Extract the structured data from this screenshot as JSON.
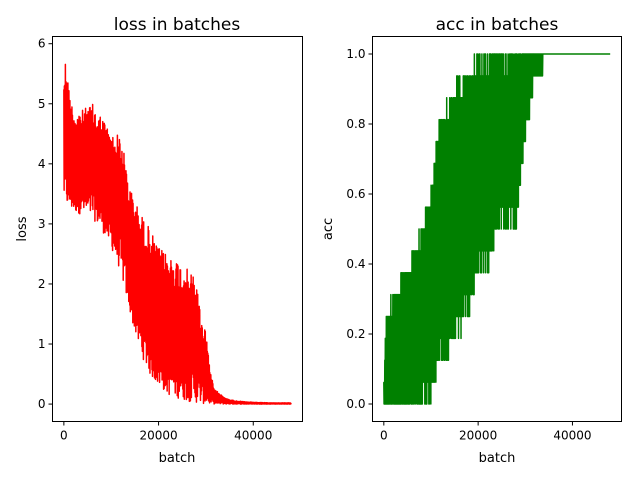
{
  "chart_data": [
    {
      "type": "line",
      "title": "loss in batches",
      "xlabel": "batch",
      "ylabel": "loss",
      "xlim": [
        -2400,
        50400
      ],
      "ylim": [
        -0.29,
        6.12
      ],
      "xticks": [
        0,
        20000,
        40000
      ],
      "xtick_labels": [
        "0",
        "20000",
        "40000"
      ],
      "yticks": [
        0,
        1,
        2,
        3,
        4,
        5,
        6
      ],
      "ytick_labels": [
        "0",
        "1",
        "2",
        "3",
        "4",
        "5",
        "6"
      ],
      "grid": false,
      "series": [
        {
          "color": "#ff0000",
          "style": "noisy",
          "x": [
            0,
            500,
            1000,
            2000,
            4000,
            6000,
            8000,
            10000,
            12000,
            14000,
            16000,
            18000,
            20000,
            22000,
            24000,
            26000,
            28000,
            29000,
            30000,
            31000,
            32000,
            34000,
            36000,
            38000,
            40000,
            44000,
            48000
          ],
          "upper": [
            5.6,
            5.85,
            5.3,
            4.9,
            4.9,
            5.0,
            4.8,
            4.5,
            4.5,
            3.6,
            3.2,
            2.95,
            2.6,
            2.5,
            2.4,
            2.25,
            2.1,
            1.4,
            1.25,
            0.5,
            0.25,
            0.1,
            0.06,
            0.04,
            0.03,
            0.02,
            0.02
          ],
          "lower": [
            3.4,
            3.3,
            3.25,
            3.2,
            3.15,
            3.1,
            2.9,
            2.6,
            2.2,
            1.5,
            0.9,
            0.5,
            0.3,
            0.15,
            0.1,
            0.05,
            0.02,
            0.01,
            0.0,
            0.0,
            0.0,
            0.0,
            0.0,
            0.0,
            0.0,
            0.0,
            0.0
          ]
        }
      ]
    },
    {
      "type": "line",
      "title": "acc in batches",
      "xlabel": "batch",
      "ylabel": "acc",
      "xlim": [
        -2400,
        50400
      ],
      "ylim": [
        -0.05,
        1.05
      ],
      "xticks": [
        0,
        20000,
        40000
      ],
      "xtick_labels": [
        "0",
        "20000",
        "40000"
      ],
      "yticks": [
        0.0,
        0.2,
        0.4,
        0.6,
        0.8,
        1.0
      ],
      "ytick_labels": [
        "0.0",
        "0.2",
        "0.4",
        "0.6",
        "0.8",
        "1.0"
      ],
      "grid": false,
      "series": [
        {
          "color": "#008000",
          "style": "noisy",
          "x": [
            0,
            500,
            2000,
            4000,
            6000,
            8000,
            10000,
            11000,
            12000,
            14000,
            16000,
            18000,
            20000,
            22000,
            24000,
            26000,
            28000,
            30000,
            32000,
            33500,
            34000,
            48000
          ],
          "upper": [
            0.06,
            0.25,
            0.31,
            0.37,
            0.43,
            0.5,
            0.6,
            0.75,
            0.81,
            0.87,
            0.94,
            0.94,
            1.0,
            1.0,
            1.0,
            1.0,
            1.0,
            1.0,
            1.0,
            1.0,
            1.0,
            1.0
          ],
          "lower": [
            0.0,
            0.0,
            0.0,
            0.0,
            0.0,
            0.0,
            0.0,
            0.06,
            0.12,
            0.15,
            0.19,
            0.25,
            0.37,
            0.37,
            0.5,
            0.5,
            0.5,
            0.75,
            0.94,
            0.94,
            1.0,
            1.0
          ]
        }
      ]
    }
  ]
}
